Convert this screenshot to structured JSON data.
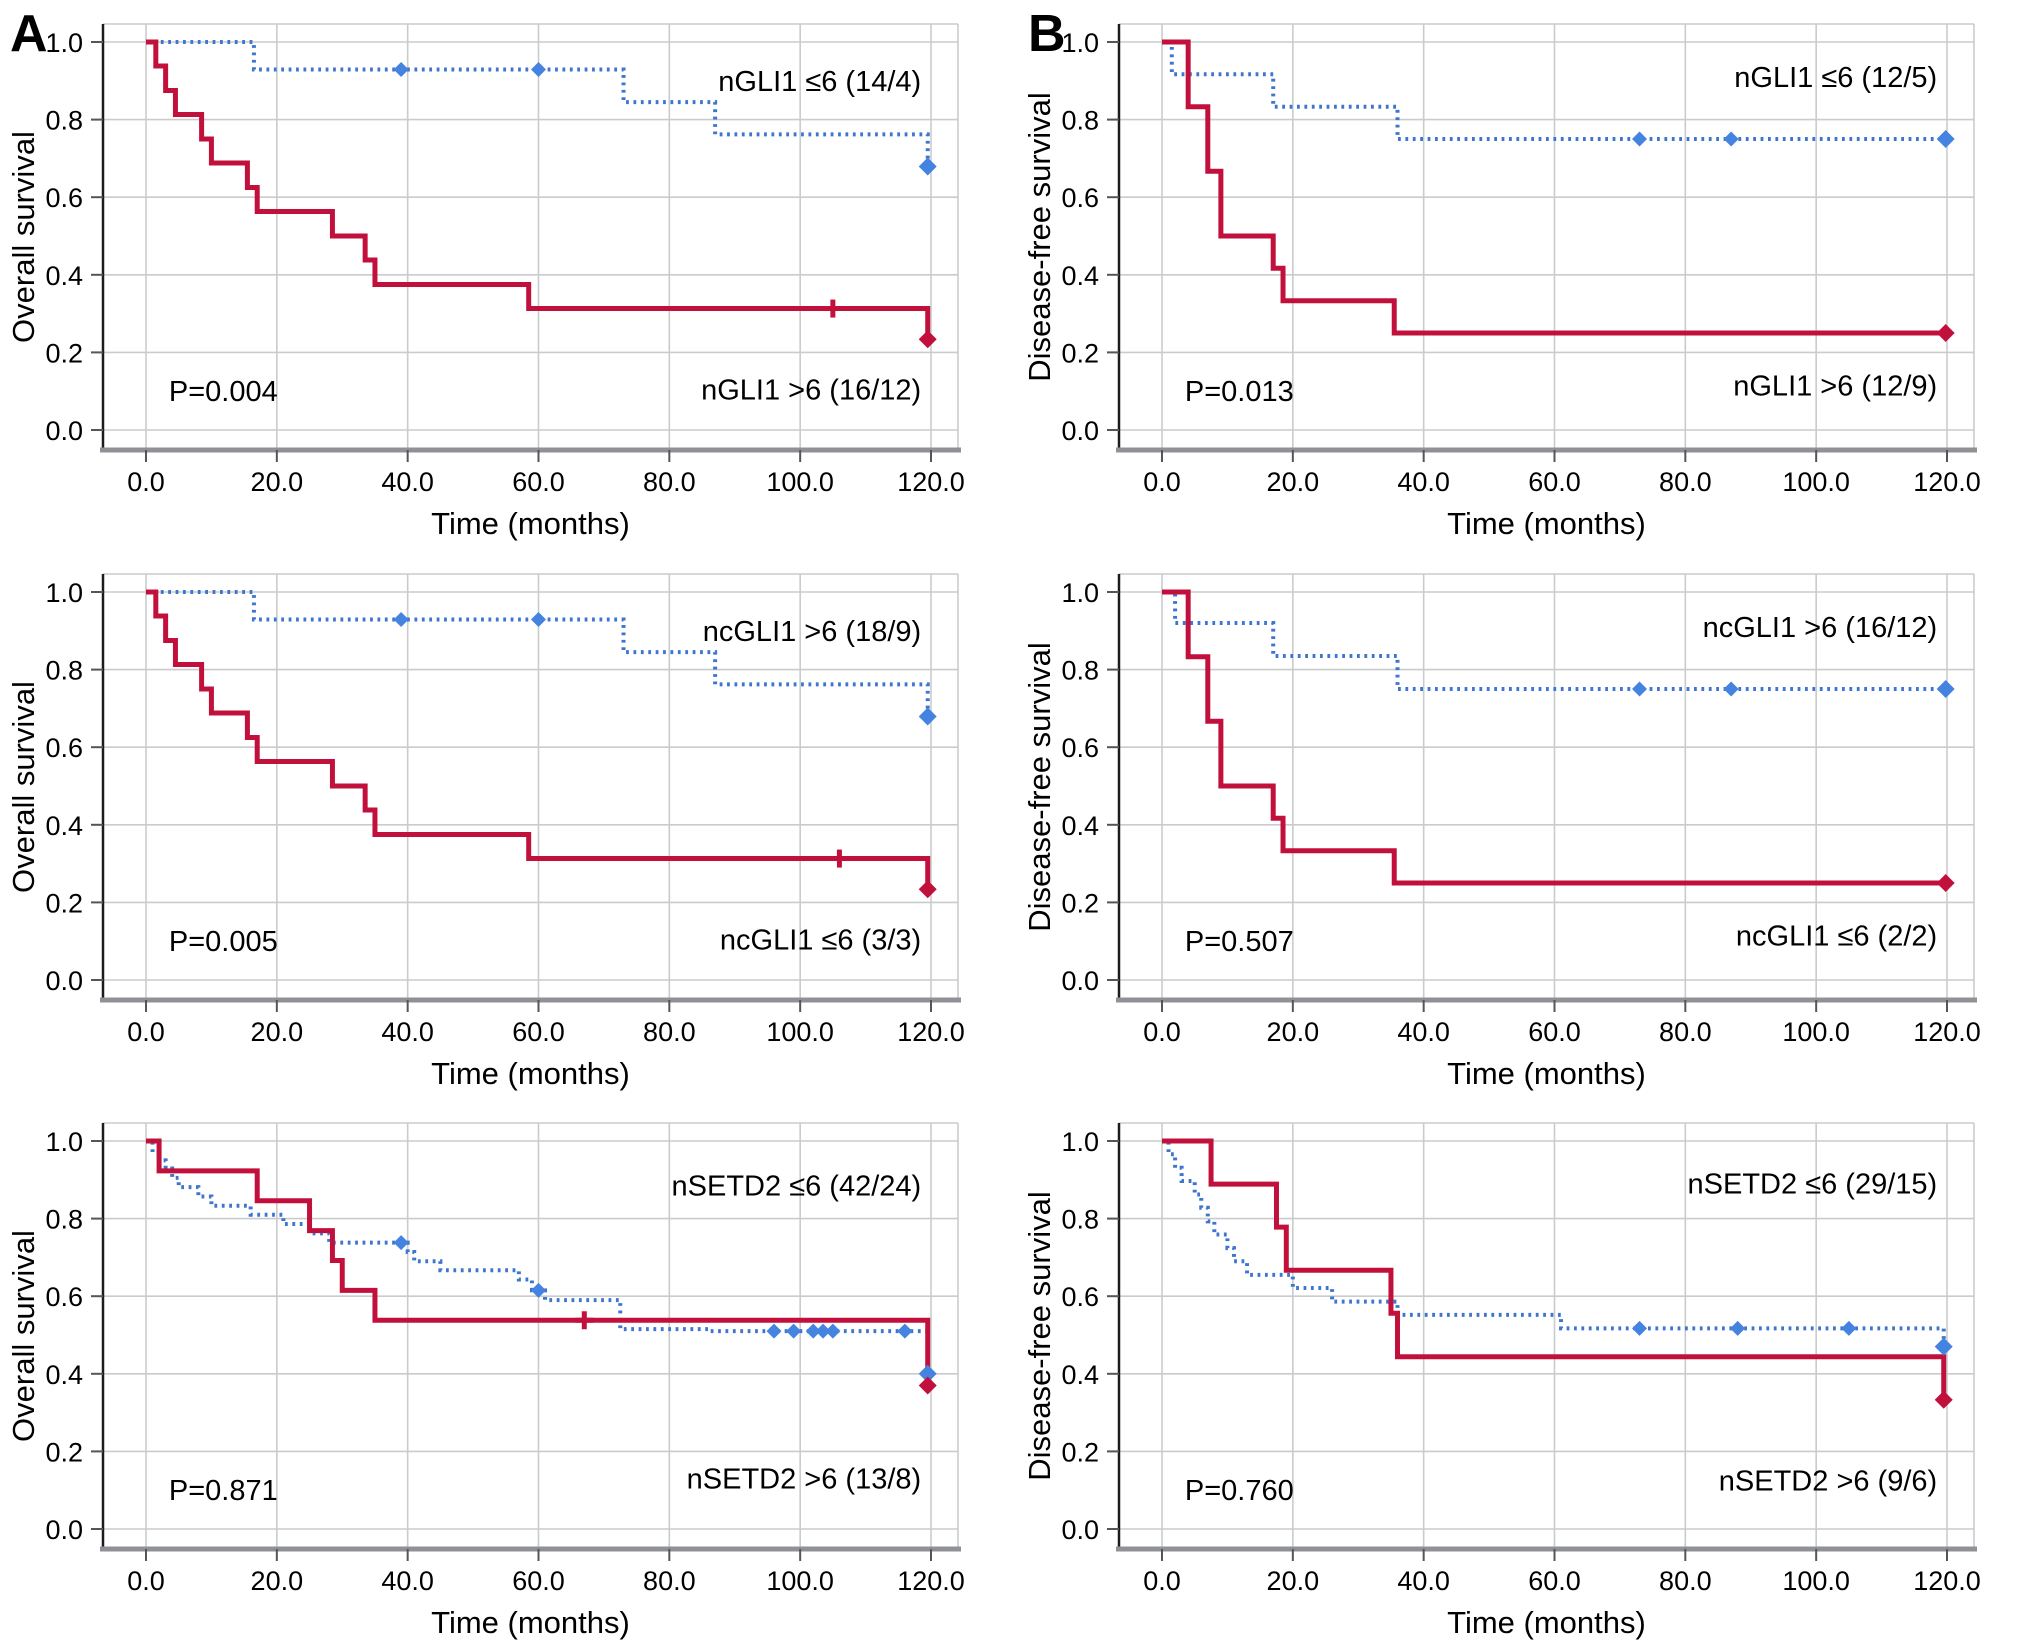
{
  "figure": {
    "panel_letters": [
      "A",
      "B"
    ],
    "background": "#ffffff"
  },
  "colors": {
    "red": "#c2103d",
    "blue": "#3f76cd",
    "blue_marker": "#4583e0",
    "grid": "#c9cbcd",
    "frame": "#c9cbcd",
    "axis_spine": "#1c1c1c",
    "baseline": "#8f9194",
    "text": "#000000"
  },
  "axes": {
    "x_ticks": [
      0,
      20,
      40,
      60,
      80,
      100,
      120
    ],
    "x_tick_labels": [
      "0.0",
      "20.0",
      "40.0",
      "60.0",
      "80.0",
      "100.0",
      "120.0"
    ],
    "y_ticks": [
      0,
      0.2,
      0.4,
      0.6,
      0.8,
      1
    ],
    "y_tick_labels": [
      "0.0",
      "0.2",
      "0.4",
      "0.6",
      "0.8",
      "1.0"
    ],
    "xlabel": "Time (months)",
    "xlim": [
      0,
      124
    ],
    "ylim": [
      0,
      1.05
    ],
    "grid": true
  },
  "chart_data": [
    {
      "id": "A1",
      "type": "line",
      "subtype": "kaplan_meier",
      "position": {
        "col": 0,
        "row": 0
      },
      "ylabel": "Overall survival",
      "xlabel": "Time (months)",
      "p_value": "P=0.004",
      "p_pos": [
        3.5,
        0.1
      ],
      "series": [
        {
          "name": "nGLI1 ≤6 (14/4)",
          "color": "blue",
          "style": "dotted",
          "start": [
            0,
            1.0
          ],
          "km": [
            [
              16.5,
              0.929
            ],
            [
              73,
              0.845
            ],
            [
              87,
              0.762
            ]
          ],
          "end": [
            119.5,
            0.679
          ],
          "censors": [
            [
              39,
              0.929
            ],
            [
              60,
              0.929
            ]
          ],
          "censor_shape": "diamond",
          "end_marker": [
            119.5,
            0.679
          ],
          "label_pos": [
            118.5,
            0.9
          ],
          "label_anchor": "end"
        },
        {
          "name": "nGLI1 >6 (16/12)",
          "color": "red",
          "style": "solid",
          "start": [
            0,
            1.0
          ],
          "km": [
            [
              1.5,
              0.938
            ],
            [
              3,
              0.875
            ],
            [
              4.5,
              0.813
            ],
            [
              8.5,
              0.75
            ],
            [
              10,
              0.688
            ],
            [
              15.5,
              0.625
            ],
            [
              17,
              0.563
            ],
            [
              28.5,
              0.5
            ],
            [
              33.5,
              0.438
            ],
            [
              35,
              0.375
            ],
            [
              58.5,
              0.313
            ]
          ],
          "end": [
            119.5,
            0.234
          ],
          "censors": [
            [
              105,
              0.313
            ]
          ],
          "censor_shape": "plus",
          "end_marker": [
            119.5,
            0.234
          ],
          "label_pos": [
            118.5,
            0.105
          ],
          "label_anchor": "end"
        }
      ]
    },
    {
      "id": "A2",
      "type": "line",
      "subtype": "kaplan_meier",
      "position": {
        "col": 0,
        "row": 1
      },
      "ylabel": "Overall survival",
      "xlabel": "Time (months)",
      "p_value": "P=0.005",
      "p_pos": [
        3.5,
        0.1
      ],
      "series": [
        {
          "name": "ncGLI1 >6 (18/9)",
          "color": "blue",
          "style": "dotted",
          "start": [
            0,
            1.0
          ],
          "km": [
            [
              16.5,
              0.929
            ],
            [
              73,
              0.845
            ],
            [
              87,
              0.762
            ]
          ],
          "end": [
            119.5,
            0.679
          ],
          "censors": [
            [
              39,
              0.929
            ],
            [
              60,
              0.929
            ]
          ],
          "censor_shape": "diamond",
          "end_marker": [
            119.5,
            0.679
          ],
          "label_pos": [
            118.5,
            0.9
          ],
          "label_anchor": "end"
        },
        {
          "name": "ncGLI1 ≤6 (3/3)",
          "color": "red",
          "style": "solid",
          "start": [
            0,
            1.0
          ],
          "km": [
            [
              1.5,
              0.938
            ],
            [
              3,
              0.875
            ],
            [
              4.5,
              0.813
            ],
            [
              8.5,
              0.75
            ],
            [
              10,
              0.688
            ],
            [
              15.5,
              0.625
            ],
            [
              17,
              0.563
            ],
            [
              28.5,
              0.5
            ],
            [
              33.5,
              0.438
            ],
            [
              35,
              0.375
            ],
            [
              58.5,
              0.313
            ]
          ],
          "end": [
            119.5,
            0.234
          ],
          "censors": [
            [
              106,
              0.313
            ]
          ],
          "censor_shape": "plus",
          "end_marker": [
            119.5,
            0.234
          ],
          "label_pos": [
            118.5,
            0.105
          ],
          "label_anchor": "end"
        }
      ]
    },
    {
      "id": "A3",
      "type": "line",
      "subtype": "kaplan_meier",
      "position": {
        "col": 0,
        "row": 2
      },
      "ylabel": "Overall survival",
      "xlabel": "Time (months)",
      "p_value": "P=0.871",
      "p_pos": [
        3.5,
        0.1
      ],
      "series": [
        {
          "name": "nSETD2 ≤6 (42/24)",
          "color": "blue",
          "style": "dotted",
          "start": [
            0,
            1.0
          ],
          "km": [
            [
              1,
              0.97
            ],
            [
              2,
              0.95
            ],
            [
              3,
              0.929
            ],
            [
              4,
              0.905
            ],
            [
              5,
              0.881
            ],
            [
              8,
              0.857
            ],
            [
              10,
              0.833
            ],
            [
              16,
              0.81
            ],
            [
              21,
              0.786
            ],
            [
              25,
              0.762
            ],
            [
              28,
              0.738
            ],
            [
              40,
              0.714
            ],
            [
              41,
              0.69
            ],
            [
              45,
              0.667
            ],
            [
              57,
              0.643
            ],
            [
              59,
              0.615
            ],
            [
              61,
              0.59
            ],
            [
              72.5,
              0.515
            ],
            [
              86,
              0.51
            ]
          ],
          "end": [
            119.5,
            0.4
          ],
          "censors": [
            [
              39,
              0.738
            ],
            [
              60,
              0.615
            ],
            [
              96,
              0.51
            ],
            [
              99,
              0.51
            ],
            [
              102,
              0.51
            ],
            [
              103.5,
              0.51
            ],
            [
              105,
              0.51
            ],
            [
              116,
              0.51
            ]
          ],
          "censor_shape": "diamond",
          "end_marker": [
            119.5,
            0.4
          ],
          "label_pos": [
            118.5,
            0.885
          ],
          "label_anchor": "end"
        },
        {
          "name": "nSETD2 >6 (13/8)",
          "color": "red",
          "style": "solid",
          "start": [
            0,
            1.0
          ],
          "km": [
            [
              2,
              0.923
            ],
            [
              17,
              0.846
            ],
            [
              25,
              0.769
            ],
            [
              28.5,
              0.692
            ],
            [
              30,
              0.615
            ],
            [
              35,
              0.538
            ]
          ],
          "end": [
            119.5,
            0.37
          ],
          "censors": [
            [
              67,
              0.538
            ]
          ],
          "censor_shape": "plus",
          "end_marker": [
            119.5,
            0.37
          ],
          "label_pos": [
            118.5,
            0.13
          ],
          "label_anchor": "end"
        }
      ]
    },
    {
      "id": "B1",
      "type": "line",
      "subtype": "kaplan_meier",
      "position": {
        "col": 1,
        "row": 0
      },
      "ylabel": "Disease-free survival",
      "xlabel": "Time (months)",
      "p_value": "P=0.013",
      "p_pos": [
        3.5,
        0.1
      ],
      "series": [
        {
          "name": "nGLI1 ≤6 (12/5)",
          "color": "blue",
          "style": "dotted",
          "start": [
            0,
            1.0
          ],
          "km": [
            [
              1.5,
              0.917
            ],
            [
              17,
              0.833
            ],
            [
              36,
              0.75
            ]
          ],
          "tmax": 120,
          "censors": [
            [
              73,
              0.75
            ],
            [
              87,
              0.75
            ]
          ],
          "censor_shape": "diamond",
          "end_marker": [
            119.8,
            0.75
          ],
          "label_pos": [
            118.5,
            0.91
          ],
          "label_anchor": "end"
        },
        {
          "name": "nGLI1 >6 (12/9)",
          "color": "red",
          "style": "solid",
          "start": [
            0,
            1.0
          ],
          "km": [
            [
              4,
              0.833
            ],
            [
              7,
              0.667
            ],
            [
              9,
              0.5
            ],
            [
              17,
              0.417
            ],
            [
              18.5,
              0.333
            ],
            [
              35.5,
              0.25
            ]
          ],
          "tmax": 120,
          "censors": [],
          "censor_shape": "plus",
          "end_marker": [
            119.8,
            0.25
          ],
          "label_pos": [
            118.5,
            0.115
          ],
          "label_anchor": "end"
        }
      ]
    },
    {
      "id": "B2",
      "type": "line",
      "subtype": "kaplan_meier",
      "position": {
        "col": 1,
        "row": 1
      },
      "ylabel": "Disease-free survival",
      "xlabel": "Time (months)",
      "p_value": "P=0.507",
      "p_pos": [
        3.5,
        0.1
      ],
      "series": [
        {
          "name": "ncGLI1 >6 (16/12)",
          "color": "blue",
          "style": "dotted",
          "start": [
            0,
            1.0
          ],
          "km": [
            [
              2,
              0.92
            ],
            [
              17,
              0.835
            ],
            [
              36,
              0.75
            ]
          ],
          "tmax": 120,
          "censors": [
            [
              73,
              0.75
            ],
            [
              87,
              0.75
            ]
          ],
          "censor_shape": "diamond",
          "end_marker": [
            119.8,
            0.75
          ],
          "label_pos": [
            118.5,
            0.91
          ],
          "label_anchor": "end"
        },
        {
          "name": "ncGLI1 ≤6 (2/2)",
          "color": "red",
          "style": "solid",
          "start": [
            0,
            1.0
          ],
          "km": [
            [
              4,
              0.833
            ],
            [
              7,
              0.667
            ],
            [
              9,
              0.5
            ],
            [
              17,
              0.417
            ],
            [
              18.5,
              0.333
            ],
            [
              35.5,
              0.25
            ]
          ],
          "tmax": 120,
          "censors": [],
          "censor_shape": "plus",
          "end_marker": [
            119.8,
            0.25
          ],
          "label_pos": [
            118.5,
            0.115
          ],
          "label_anchor": "end"
        }
      ]
    },
    {
      "id": "B3",
      "type": "line",
      "subtype": "kaplan_meier",
      "position": {
        "col": 1,
        "row": 2
      },
      "ylabel": "Disease-free survival",
      "xlabel": "Time (months)",
      "p_value": "P=0.760",
      "p_pos": [
        3.5,
        0.1
      ],
      "series": [
        {
          "name": "nSETD2 ≤6 (29/15)",
          "color": "blue",
          "style": "dotted",
          "start": [
            0,
            1.0
          ],
          "km": [
            [
              1,
              0.966
            ],
            [
              2,
              0.931
            ],
            [
              3,
              0.897
            ],
            [
              5,
              0.862
            ],
            [
              6,
              0.828
            ],
            [
              7,
              0.793
            ],
            [
              8,
              0.759
            ],
            [
              10,
              0.724
            ],
            [
              11,
              0.69
            ],
            [
              13,
              0.655
            ],
            [
              20,
              0.621
            ],
            [
              26,
              0.586
            ],
            [
              36,
              0.552
            ],
            [
              61,
              0.517
            ]
          ],
          "end": [
            119.5,
            0.47
          ],
          "censors": [
            [
              73,
              0.517
            ],
            [
              88,
              0.517
            ],
            [
              105,
              0.517
            ]
          ],
          "censor_shape": "diamond",
          "end_marker": [
            119.5,
            0.47
          ],
          "label_pos": [
            118.5,
            0.89
          ],
          "label_anchor": "end"
        },
        {
          "name": "nSETD2 >6 (9/6)",
          "color": "red",
          "style": "solid",
          "start": [
            0,
            1.0
          ],
          "km": [
            [
              7.5,
              0.889
            ],
            [
              17.5,
              0.778
            ],
            [
              19,
              0.667
            ],
            [
              35,
              0.556
            ],
            [
              36,
              0.444
            ]
          ],
          "end": [
            119.5,
            0.333
          ],
          "censors": [],
          "censor_shape": "plus",
          "end_marker": [
            119.5,
            0.333
          ],
          "label_pos": [
            118.5,
            0.125
          ],
          "label_anchor": "end"
        }
      ]
    }
  ]
}
